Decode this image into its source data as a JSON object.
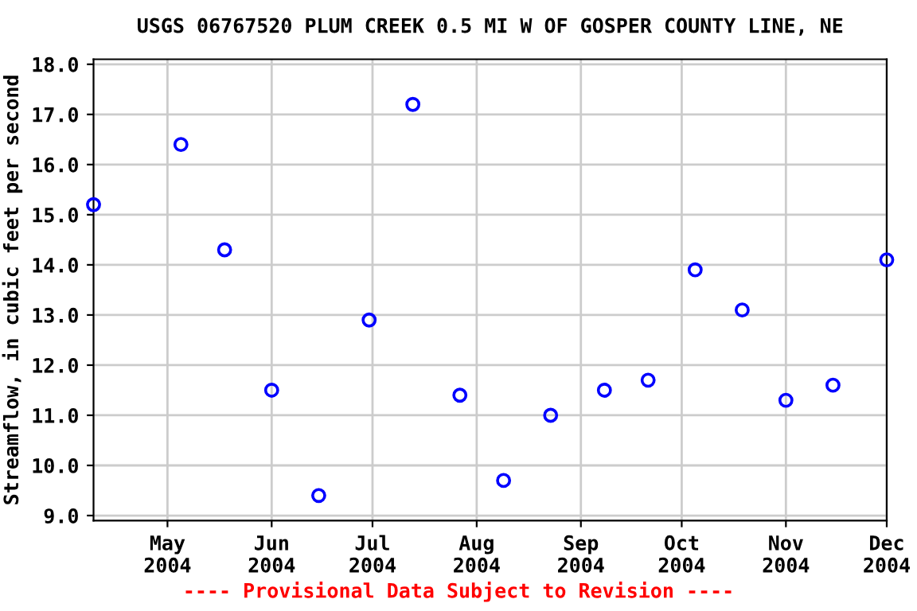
{
  "chart_data": {
    "type": "scatter",
    "title": "USGS 06767520 PLUM CREEK 0.5 MI W OF GOSPER COUNTY LINE, NE",
    "ylabel": "Streamflow, in cubic feet per second",
    "annotations": [
      "---- Provisional Data Subject to Revision ----"
    ],
    "x": [
      "2004-04-09",
      "2004-05-05",
      "2004-05-18",
      "2004-06-01",
      "2004-06-15",
      "2004-06-30",
      "2004-07-13",
      "2004-07-27",
      "2004-08-09",
      "2004-08-23",
      "2004-09-08",
      "2004-09-21",
      "2004-10-05",
      "2004-10-19",
      "2004-11-01",
      "2004-11-15",
      "2004-12-01"
    ],
    "series": [
      {
        "color": "#0000ff",
        "values": [
          15.2,
          16.4,
          14.3,
          11.5,
          9.4,
          12.9,
          17.2,
          11.4,
          9.7,
          11.0,
          11.5,
          11.7,
          13.9,
          13.1,
          11.3,
          11.6,
          14.1
        ]
      }
    ],
    "marker": "circle",
    "grid": true,
    "xlim": [
      "2004-04-09",
      "2004-12-01"
    ],
    "xticks": [
      {
        "value": "2004-05-01",
        "label": "May\n2004"
      },
      {
        "value": "2004-06-01",
        "label": "Jun\n2004"
      },
      {
        "value": "2004-07-01",
        "label": "Jul\n2004"
      },
      {
        "value": "2004-08-01",
        "label": "Aug\n2004"
      },
      {
        "value": "2004-09-01",
        "label": "Sep\n2004"
      },
      {
        "value": "2004-10-01",
        "label": "Oct\n2004"
      },
      {
        "value": "2004-11-01",
        "label": "Nov\n2004"
      },
      {
        "value": "2004-12-01",
        "label": "Dec\n2004"
      }
    ],
    "ylim": [
      8.9,
      18.1
    ],
    "yticks": [
      {
        "value": 9,
        "label": "9.0"
      },
      {
        "value": 10,
        "label": "10.0"
      },
      {
        "value": 11,
        "label": "11.0"
      },
      {
        "value": 12,
        "label": "12.0"
      },
      {
        "value": 13,
        "label": "13.0"
      },
      {
        "value": 14,
        "label": "14.0"
      },
      {
        "value": 15,
        "label": "15.0"
      },
      {
        "value": 16,
        "label": "16.0"
      },
      {
        "value": 17,
        "label": "17.0"
      },
      {
        "value": 18,
        "label": "18.0"
      }
    ]
  }
}
